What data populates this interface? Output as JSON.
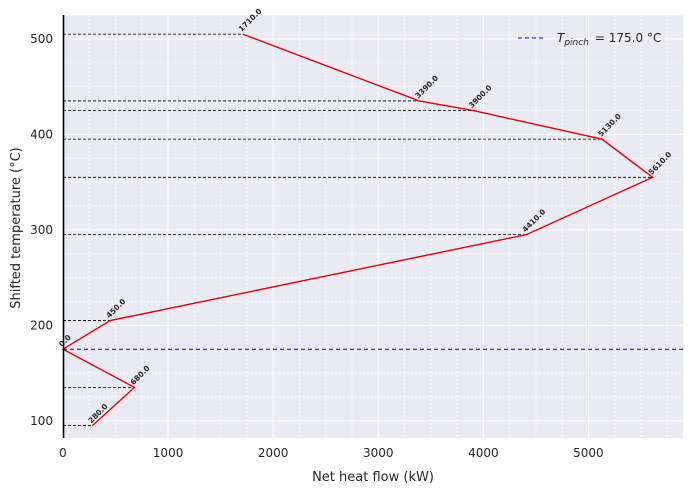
{
  "chart_data": {
    "type": "line",
    "title": "",
    "xlabel": "Net heat flow (kW)",
    "ylabel": "Shifted temperature (°C)",
    "xlim": [
      0,
      5900
    ],
    "ylim": [
      82,
      525
    ],
    "xticks": [
      "0",
      "1000",
      "2000",
      "3000",
      "4000",
      "5000"
    ],
    "yticks": [
      "100",
      "200",
      "300",
      "400",
      "500"
    ],
    "grid": true,
    "legend_position": "top-right",
    "colors": {
      "curve": "#e8000b",
      "pinch": "#0000cc",
      "dashed": "#000000",
      "background": "#eaeaf2",
      "grid": "#ffffff",
      "axis": "#000000"
    },
    "series": [
      {
        "points": [
          {
            "x": 1710,
            "y": 505,
            "label": "1710.0"
          },
          {
            "x": 3390,
            "y": 435,
            "label": "3390.0"
          },
          {
            "x": 3900,
            "y": 425,
            "label": "3900.0"
          },
          {
            "x": 5130,
            "y": 395,
            "label": "5130.0"
          },
          {
            "x": 5610,
            "y": 355,
            "label": "5610.0"
          },
          {
            "x": 4410,
            "y": 295,
            "label": "4410.0"
          },
          {
            "x": 450,
            "y": 205,
            "label": "450.0"
          },
          {
            "x": 0,
            "y": 175,
            "label": "0.0"
          },
          {
            "x": 680,
            "y": 135,
            "label": "680.0"
          },
          {
            "x": 280,
            "y": 95,
            "label": "280.0"
          }
        ]
      }
    ],
    "pinch": {
      "y": 175,
      "legend_symbol": "T",
      "legend_subscript": "pinch",
      "legend_suffix": "= 175.0 °C"
    }
  }
}
